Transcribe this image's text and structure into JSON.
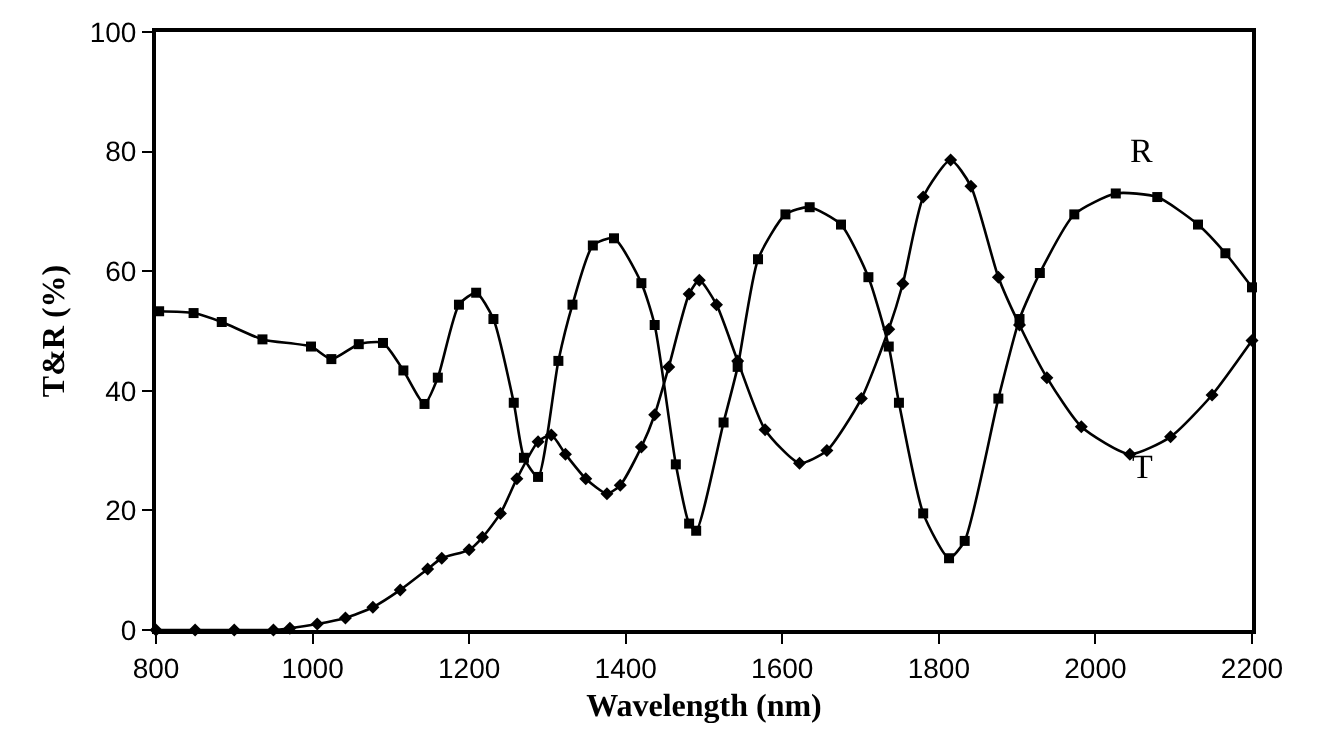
{
  "chart_data": {
    "type": "line",
    "xlabel": "Wavelength (nm)",
    "ylabel": "T&R (%)",
    "xlim": [
      800,
      2200
    ],
    "ylim": [
      0,
      100
    ],
    "xticks": [
      800,
      1000,
      1200,
      1400,
      1600,
      1800,
      2000,
      2200
    ],
    "yticks": [
      0,
      20,
      40,
      60,
      80,
      100
    ],
    "grid": false,
    "legend": false,
    "line_style": "solid",
    "series": [
      {
        "name": "R",
        "color": "#000000",
        "marker": "square",
        "x": [
          804,
          848,
          884,
          936,
          998,
          1024,
          1059,
          1090,
          1116,
          1143,
          1160,
          1187,
          1209,
          1231,
          1257,
          1270,
          1288,
          1314,
          1332,
          1358,
          1385,
          1420,
          1437,
          1464,
          1481,
          1490,
          1525,
          1543,
          1569,
          1604,
          1635,
          1675,
          1710,
          1736,
          1749,
          1780,
          1813,
          1833,
          1876,
          1903,
          1929,
          1973,
          2026,
          2079,
          2131,
          2166,
          2200
        ],
        "values": [
          53.3,
          53,
          51.5,
          48.6,
          47.4,
          45.3,
          47.8,
          48,
          43.4,
          37.8,
          42.2,
          54.4,
          56.4,
          52,
          38,
          28.8,
          25.6,
          45,
          54.4,
          64.3,
          65.5,
          58,
          51,
          27.7,
          17.8,
          16.6,
          34.7,
          44,
          62,
          69.5,
          70.7,
          67.8,
          59,
          47.4,
          38,
          19.5,
          12,
          14.9,
          38.7,
          52,
          59.7,
          69.5,
          73,
          72.4,
          67.8,
          63,
          57.3
        ]
      },
      {
        "name": "T",
        "color": "#000000",
        "marker": "diamond",
        "x": [
          800,
          850,
          900,
          950,
          971,
          1006,
          1042,
          1077,
          1112,
          1147,
          1165,
          1200,
          1217,
          1240,
          1261,
          1288,
          1305,
          1323,
          1349,
          1376,
          1393,
          1420,
          1437,
          1455,
          1481,
          1494,
          1516,
          1543,
          1578,
          1622,
          1657,
          1701,
          1736,
          1754,
          1780,
          1815,
          1841,
          1876,
          1903,
          1938,
          1982,
          2044,
          2096,
          2149,
          2200
        ],
        "values": [
          0,
          0,
          0,
          0,
          0.3,
          1,
          2,
          3.8,
          6.7,
          10.2,
          12,
          13.4,
          15.5,
          19.5,
          25.3,
          31.5,
          32.6,
          29.4,
          25.3,
          22.8,
          24.2,
          30.6,
          36,
          44,
          56.2,
          58.5,
          54.4,
          45,
          33.5,
          27.9,
          30,
          38.7,
          50.3,
          57.9,
          72.4,
          78.6,
          74.2,
          59,
          51,
          42.2,
          34,
          29.4,
          32.3,
          39.3,
          48.4
        ]
      }
    ]
  }
}
